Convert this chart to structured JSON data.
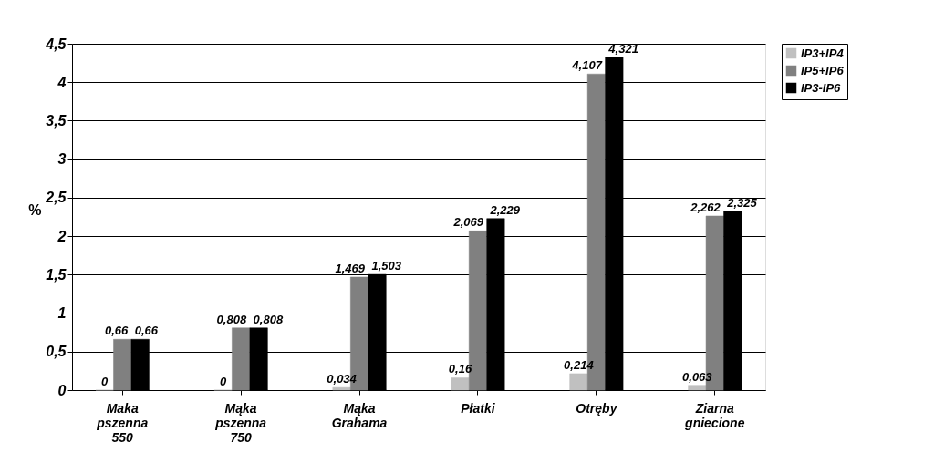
{
  "chart_data": {
    "type": "bar",
    "ylabel": "%",
    "categories": [
      "Maka pszenna 550",
      "Mąka pszenna 750",
      "Mąka Grahama",
      "Płatki",
      "Otręby",
      "Ziarna gniecione"
    ],
    "series": [
      {
        "name": "IP3+IP4",
        "color": "#c0c0c0",
        "values": [
          0,
          0,
          0.034,
          0.16,
          0.214,
          0.063
        ],
        "value_labels": [
          "0",
          "0",
          "0,034",
          "0,16",
          "0,214",
          "0,063"
        ]
      },
      {
        "name": "IP5+IP6",
        "color": "#808080",
        "values": [
          0.66,
          0.808,
          1.469,
          2.069,
          4.107,
          2.262
        ],
        "value_labels": [
          "0,66",
          "0,808",
          "1,469",
          "2,069",
          "4,107",
          "2,262"
        ]
      },
      {
        "name": "IP3-IP6",
        "color": "#000000",
        "values": [
          0.66,
          0.808,
          1.503,
          2.229,
          4.321,
          2.325
        ],
        "value_labels": [
          "0,66",
          "0,808",
          "1,503",
          "2,229",
          "4,321",
          "2,325"
        ]
      }
    ],
    "ylim": [
      0,
      4.5
    ],
    "yticks": [
      0,
      {
        "value": 0.5,
        "label": "0,5"
      },
      1,
      {
        "value": 1.5,
        "label": "1,5"
      },
      2,
      {
        "value": 2.5,
        "label": "2,5"
      },
      3,
      {
        "value": 3.5,
        "label": "3,5"
      },
      4,
      {
        "value": 4.5,
        "label": "4,5"
      }
    ],
    "grid": "y",
    "legend": "right"
  }
}
